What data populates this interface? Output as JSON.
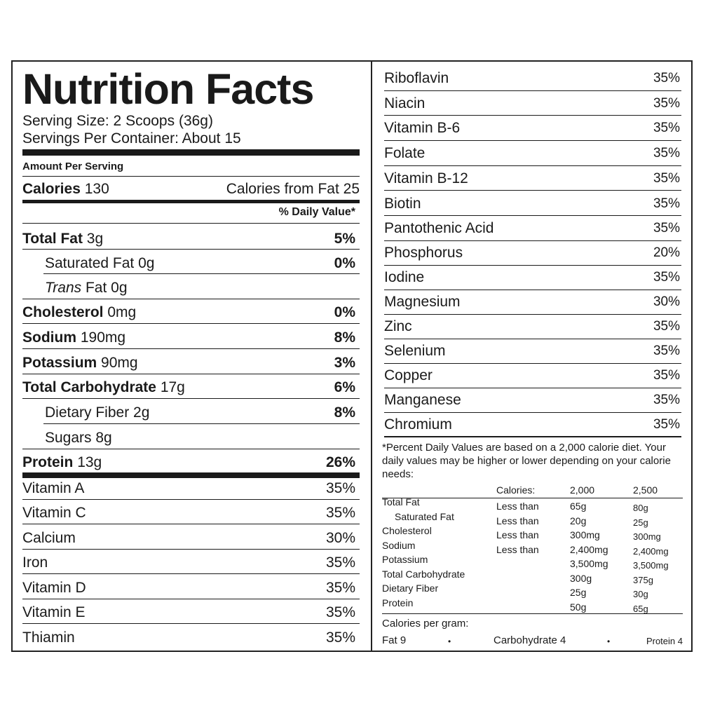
{
  "title": "Nutrition Facts",
  "serving_size": "Serving Size: 2 Scoops (36g)",
  "servings_per_container": "Servings Per Container: About 15",
  "amount_per_serving": "Amount Per Serving",
  "calories": {
    "label": "Calories",
    "value": "130",
    "from_fat": "Calories from Fat 25"
  },
  "daily_value_header": "% Daily Value*",
  "nutrients": [
    {
      "label": "Total Fat",
      "amount": "3g",
      "pct": "5%"
    },
    {
      "label": "Saturated Fat 0g",
      "pct": "0%"
    },
    {
      "label_italic": "Trans",
      "label": "Fat 0g"
    },
    {
      "label": "Cholesterol",
      "amount": "0mg",
      "pct": "0%"
    },
    {
      "label": "Sodium",
      "amount": "190mg",
      "pct": "8%"
    },
    {
      "label": "Potassium",
      "amount": "90mg",
      "pct": "3%"
    },
    {
      "label": "Total Carbohydrate",
      "amount": "17g",
      "pct": "6%"
    },
    {
      "label": "Dietary Fiber 2g",
      "pct": "8%"
    },
    {
      "label": "Sugars 8g"
    },
    {
      "label": "Protein",
      "amount": "13g",
      "pct": "26%"
    }
  ],
  "vitamins_left": [
    {
      "label": "Vitamin A",
      "pct": "35%"
    },
    {
      "label": "Vitamin C",
      "pct": "35%"
    },
    {
      "label": "Calcium",
      "pct": "30%"
    },
    {
      "label": "Iron",
      "pct": "35%"
    },
    {
      "label": "Vitamin D",
      "pct": "35%"
    },
    {
      "label": "Vitamin E",
      "pct": "35%"
    },
    {
      "label": "Thiamin",
      "pct": "35%"
    }
  ],
  "vitamins_right": [
    {
      "label": "Riboflavin",
      "pct": "35%"
    },
    {
      "label": "Niacin",
      "pct": "35%"
    },
    {
      "label": "Vitamin B-6",
      "pct": "35%"
    },
    {
      "label": "Folate",
      "pct": "35%"
    },
    {
      "label": "Vitamin B-12",
      "pct": "35%"
    },
    {
      "label": "Biotin",
      "pct": "35%"
    },
    {
      "label": "Pantothenic Acid",
      "pct": "35%"
    },
    {
      "label": "Phosphorus",
      "pct": "20%"
    },
    {
      "label": "Iodine",
      "pct": "35%"
    },
    {
      "label": "Magnesium",
      "pct": "30%"
    },
    {
      "label": "Zinc",
      "pct": "35%"
    },
    {
      "label": "Selenium",
      "pct": "35%"
    },
    {
      "label": "Copper",
      "pct": "35%"
    },
    {
      "label": "Manganese",
      "pct": "35%"
    },
    {
      "label": "Chromium",
      "pct": "35%"
    }
  ],
  "footnote": "*Percent Daily Values are based on a 2,000 calorie diet. Your daily values may be higher or lower depending on your calorie needs:",
  "dv_table": {
    "header": {
      "calories": "Calories:",
      "c2000": "2,000",
      "c2500": "2,500"
    },
    "rows": [
      {
        "nutrient": "Total Fat",
        "qual": "Less than",
        "c2000": "65g",
        "c2500": "80g"
      },
      {
        "nutrient": "Saturated Fat",
        "qual": "Less than",
        "c2000": "20g",
        "c2500": "25g"
      },
      {
        "nutrient": "Cholesterol",
        "qual": "Less than",
        "c2000": "300mg",
        "c2500": "300mg"
      },
      {
        "nutrient": "Sodium",
        "qual": "Less than",
        "c2000": "2,400mg",
        "c2500": "2,400mg"
      },
      {
        "nutrient": "Potassium",
        "qual": "",
        "c2000": "3,500mg",
        "c2500": "3,500mg"
      },
      {
        "nutrient": "Total Carbohydrate",
        "qual": "",
        "c2000": "300g",
        "c2500": "375g"
      },
      {
        "nutrient": "Dietary Fiber",
        "qual": "",
        "c2000": "25g",
        "c2500": "30g"
      },
      {
        "nutrient": "Protein",
        "qual": "",
        "c2000": "50g",
        "c2500": "65g"
      }
    ]
  },
  "calories_per_gram": {
    "label": "Calories per gram:",
    "fat": "Fat 9",
    "carb": "Carbohydrate 4",
    "protein": "Protein 4",
    "sep": "•"
  }
}
